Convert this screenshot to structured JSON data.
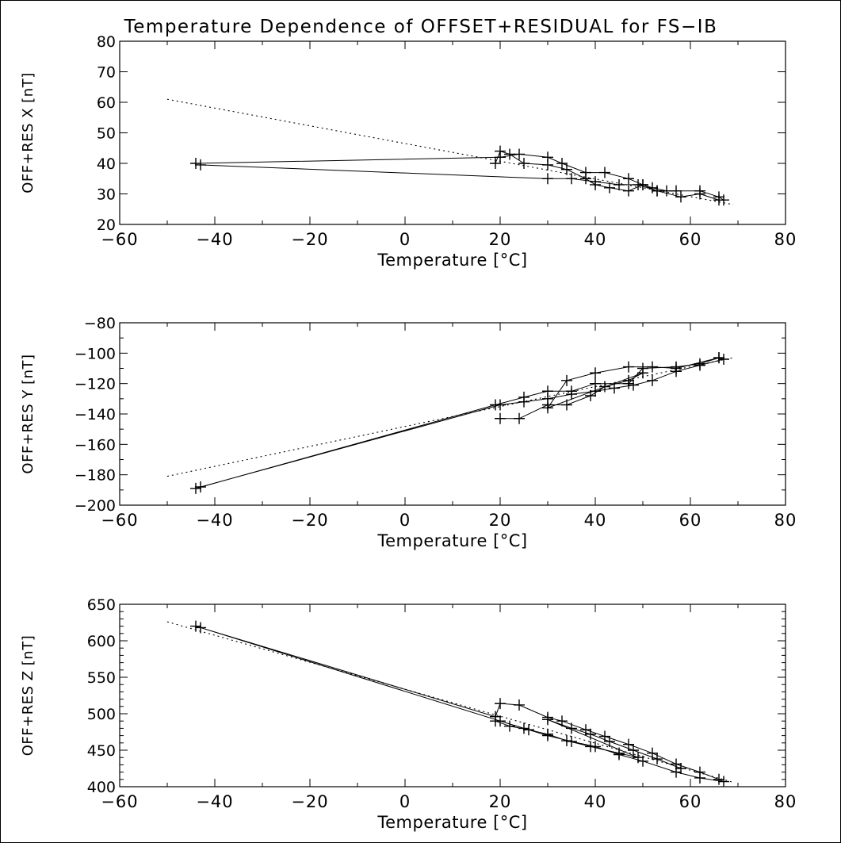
{
  "title": "Temperature Dependence of OFFSET+RESIDUAL for FS−IB",
  "chart_data": [
    {
      "type": "line",
      "title": "",
      "xlabel": "Temperature [°C]",
      "ylabel": "OFF+RES X [nT]",
      "xlim": [
        -60,
        80
      ],
      "ylim": [
        20,
        80
      ],
      "xticks": [
        -60,
        -40,
        -20,
        0,
        20,
        40,
        60,
        80
      ],
      "xtick_labels": [
        "−60",
        "−40",
        "−20",
        "0",
        "20",
        "40",
        "60",
        "80"
      ],
      "yticks": [
        20,
        30,
        40,
        50,
        60,
        70,
        80
      ],
      "ytick_labels": [
        "20",
        "30",
        "40",
        "50",
        "60",
        "70",
        "80"
      ],
      "minor_x": 2,
      "minor_y": 1,
      "grid": false,
      "measured": [
        [
          -44,
          40
        ],
        [
          20,
          42
        ],
        [
          24,
          43
        ],
        [
          30,
          42
        ],
        [
          33,
          40
        ],
        [
          38,
          37
        ],
        [
          42,
          37
        ],
        [
          47,
          35
        ],
        [
          50,
          33
        ],
        [
          53,
          31
        ],
        [
          57,
          31
        ],
        [
          62,
          31
        ],
        [
          66,
          29
        ],
        [
          67,
          28
        ],
        [
          66,
          28
        ],
        [
          62,
          30
        ],
        [
          58,
          29
        ],
        [
          53,
          31
        ],
        [
          49,
          33
        ],
        [
          45,
          33
        ],
        [
          40,
          34
        ],
        [
          35,
          35
        ],
        [
          30,
          35
        ],
        [
          -43,
          39.5
        ]
      ],
      "measured_2": [
        [
          19,
          40
        ],
        [
          20,
          44
        ],
        [
          22,
          43
        ],
        [
          25,
          40
        ],
        [
          30,
          39.5
        ],
        [
          34,
          38
        ],
        [
          38,
          35
        ],
        [
          40,
          33
        ],
        [
          43,
          32
        ],
        [
          47,
          31
        ],
        [
          50,
          33
        ],
        [
          52,
          32
        ],
        [
          55,
          31
        ]
      ],
      "fit": [
        [
          -50,
          61
        ],
        [
          69,
          26.5
        ]
      ]
    },
    {
      "type": "line",
      "title": "",
      "xlabel": "Temperature [°C]",
      "ylabel": "OFF+RES Y [nT]",
      "xlim": [
        -60,
        80
      ],
      "ylim": [
        -200,
        -80
      ],
      "xticks": [
        -60,
        -40,
        -20,
        0,
        20,
        40,
        60,
        80
      ],
      "xtick_labels": [
        "−60",
        "−40",
        "−20",
        "0",
        "20",
        "40",
        "60",
        "80"
      ],
      "yticks": [
        -200,
        -180,
        -160,
        -140,
        -120,
        -100,
        -80
      ],
      "ytick_labels": [
        "−200",
        "−180",
        "−160",
        "−140",
        "−120",
        "−100",
        "−80"
      ],
      "minor_x": 2,
      "minor_y": 2,
      "grid": false,
      "measured": [
        [
          -44,
          -189
        ],
        [
          19,
          -134
        ],
        [
          25,
          -129
        ],
        [
          30,
          -125
        ],
        [
          35,
          -125
        ],
        [
          40,
          -120
        ],
        [
          47,
          -120
        ],
        [
          50,
          -110
        ],
        [
          57,
          -109
        ],
        [
          62,
          -107
        ],
        [
          66,
          -103
        ],
        [
          67,
          -104
        ],
        [
          62,
          -108
        ],
        [
          57,
          -112
        ],
        [
          52,
          -118
        ],
        [
          48,
          -121
        ],
        [
          44,
          -123
        ],
        [
          40,
          -125
        ],
        [
          35,
          -127
        ],
        [
          30,
          -130
        ],
        [
          25,
          -132
        ],
        [
          20,
          -134
        ],
        [
          -43,
          -188
        ]
      ],
      "measured_2": [
        [
          20,
          -143
        ],
        [
          24,
          -143
        ],
        [
          30,
          -134
        ],
        [
          34,
          -134
        ],
        [
          39,
          -128
        ],
        [
          42,
          -122
        ],
        [
          47,
          -118
        ],
        [
          50,
          -113
        ],
        [
          30,
          -136
        ],
        [
          34,
          -118
        ],
        [
          40,
          -113
        ],
        [
          47,
          -109
        ],
        [
          52,
          -109
        ],
        [
          57,
          -110
        ],
        [
          66,
          -103
        ]
      ],
      "fit": [
        [
          -50,
          -181
        ],
        [
          69,
          -103
        ]
      ]
    },
    {
      "type": "line",
      "title": "",
      "xlabel": "Temperature [°C]",
      "ylabel": "OFF+RES Z [nT]",
      "xlim": [
        -60,
        80
      ],
      "ylim": [
        400,
        650
      ],
      "xticks": [
        -60,
        -40,
        -20,
        0,
        20,
        40,
        60,
        80
      ],
      "xtick_labels": [
        "−60",
        "−40",
        "−20",
        "0",
        "20",
        "40",
        "60",
        "80"
      ],
      "yticks": [
        400,
        450,
        500,
        550,
        600,
        650
      ],
      "ytick_labels": [
        "400",
        "450",
        "500",
        "550",
        "600",
        "650"
      ],
      "minor_x": 2,
      "minor_y": 5,
      "grid": false,
      "measured": [
        [
          -44,
          620
        ],
        [
          19,
          496
        ],
        [
          20,
          514
        ],
        [
          24,
          512
        ],
        [
          30,
          495
        ],
        [
          33,
          490
        ],
        [
          38,
          478
        ],
        [
          42,
          469
        ],
        [
          47,
          458
        ],
        [
          52,
          446
        ],
        [
          57,
          431
        ],
        [
          62,
          420
        ],
        [
          66,
          410
        ],
        [
          67,
          407
        ],
        [
          62,
          412
        ],
        [
          57,
          420
        ],
        [
          50,
          435
        ],
        [
          45,
          444
        ],
        [
          40,
          455
        ],
        [
          35,
          462
        ],
        [
          30,
          470
        ],
        [
          25,
          480
        ],
        [
          20,
          490
        ],
        [
          -43,
          618
        ]
      ],
      "measured_2": [
        [
          19,
          490
        ],
        [
          22,
          483
        ],
        [
          26,
          478
        ],
        [
          30,
          472
        ],
        [
          34,
          463
        ],
        [
          39,
          455
        ],
        [
          45,
          446
        ],
        [
          49,
          440
        ],
        [
          30,
          492
        ],
        [
          35,
          480
        ],
        [
          39,
          472
        ],
        [
          43,
          462
        ],
        [
          48,
          450
        ],
        [
          53,
          438
        ],
        [
          58,
          425
        ]
      ],
      "fit": [
        [
          -50,
          626
        ],
        [
          69,
          406
        ]
      ]
    }
  ]
}
